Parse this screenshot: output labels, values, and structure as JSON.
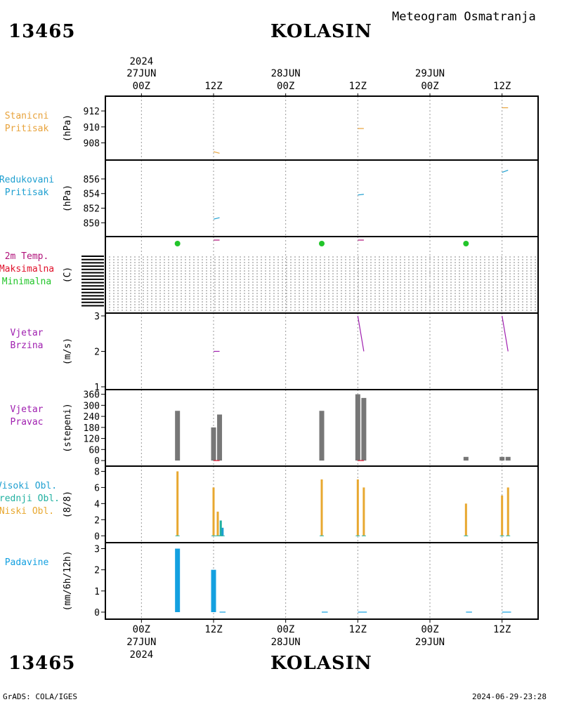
{
  "header": {
    "station_id": "13465",
    "station_name": "KOLASIN",
    "title": "Meteogram Osmatranja"
  },
  "footer": {
    "left": "GrADS: COLA/IGES",
    "right": "2024-06-29-23:28"
  },
  "colors": {
    "pressure": "#E8A33C",
    "reduced": "#1E9FD0",
    "temp": "#B0127A",
    "tmax": "#E0102A",
    "tmin": "#22C52A",
    "wind": "#A020B0",
    "dirbar": "#777777",
    "cloud": "#E8A830",
    "cloudmid": "#20B0A0",
    "precip": "#13A0E0",
    "grid": "#9a9a9a"
  },
  "chart_data": {
    "type": "meteogram",
    "x_axis": {
      "unit": "hours since 27JUN 00Z",
      "range": [
        -6,
        66
      ],
      "top_ticks": [
        {
          "x": 0,
          "line1": "2024",
          "line2": "27JUN",
          "line3": "00Z"
        },
        {
          "x": 12,
          "line1": "",
          "line2": "",
          "line3": "12Z"
        },
        {
          "x": 24,
          "line1": "",
          "line2": "28JUN",
          "line3": "00Z"
        },
        {
          "x": 36,
          "line1": "",
          "line2": "",
          "line3": "12Z"
        },
        {
          "x": 48,
          "line1": "",
          "line2": "29JUN",
          "line3": "00Z"
        },
        {
          "x": 60,
          "line1": "",
          "line2": "",
          "line3": "12Z"
        }
      ],
      "bottom_ticks": [
        {
          "x": 0,
          "line1": "00Z",
          "line2": "27JUN",
          "line3": "2024"
        },
        {
          "x": 12,
          "line1": "12Z",
          "line2": "",
          "line3": ""
        },
        {
          "x": 24,
          "line1": "00Z",
          "line2": "28JUN",
          "line3": ""
        },
        {
          "x": 36,
          "line1": "12Z",
          "line2": "",
          "line3": ""
        },
        {
          "x": 48,
          "line1": "00Z",
          "line2": "29JUN",
          "line3": ""
        },
        {
          "x": 60,
          "line1": "12Z",
          "line2": "",
          "line3": ""
        }
      ]
    },
    "panels": [
      {
        "id": "station_pressure",
        "labels": [
          "Stanicni",
          "Pritisak"
        ],
        "label_colors": [
          "#E8A33C",
          "#E8A33C"
        ],
        "ylabel": "(hPa)",
        "ylim": [
          906.2,
          913.5
        ],
        "yticks": [
          908,
          910,
          912
        ],
        "series": [
          {
            "type": "segments",
            "color": "#E8A33C",
            "points": [
              [
                12,
                906.9
              ],
              [
                13,
                906.7
              ],
              null,
              [
                36,
                909.8
              ],
              [
                37,
                909.8
              ],
              null,
              [
                60,
                912.4
              ],
              [
                61,
                912.4
              ]
            ]
          }
        ]
      },
      {
        "id": "reduced_pressure",
        "labels": [
          "Redukovani",
          "Pritisak"
        ],
        "label_colors": [
          "#1E9FD0",
          "#1E9FD0"
        ],
        "ylabel": "(hPa)",
        "ylim": [
          848.5,
          858.2
        ],
        "yticks": [
          850,
          852,
          854,
          856
        ],
        "series": [
          {
            "type": "segments",
            "color": "#1E9FD0",
            "points": [
              [
                12,
                850.5
              ],
              [
                13,
                850.7
              ],
              null,
              [
                36,
                853.8
              ],
              [
                37,
                853.9
              ],
              null,
              [
                60,
                856.9
              ],
              [
                61,
                857.2
              ]
            ]
          }
        ]
      },
      {
        "id": "temperature",
        "labels": [
          "2m Temp.",
          "Maksimalna",
          "Minimalna"
        ],
        "label_colors": [
          "#B0127A",
          "#E0102A",
          "#22C52A"
        ],
        "ylabel": "(C)",
        "ylim": [
          0,
          1
        ],
        "yticks": [],
        "series": [
          {
            "type": "points",
            "color": "#22C52A",
            "points": [
              [
                6,
                0.93
              ],
              [
                30,
                0.92
              ],
              [
                54,
                0.95
              ]
            ]
          },
          {
            "type": "segments",
            "color": "#B0127A",
            "points": [
              [
                12,
                0.99
              ],
              [
                13,
                0.99
              ],
              null,
              [
                36,
                0.99
              ],
              [
                37,
                0.99
              ]
            ]
          }
        ]
      },
      {
        "id": "wind_speed",
        "labels": [
          "Vjetar",
          "Brzina"
        ],
        "label_colors": [
          "#A020B0",
          "#A020B0"
        ],
        "ylabel": "(m/s)",
        "ylim": [
          1,
          3
        ],
        "yticks": [
          1,
          2,
          3
        ],
        "series": [
          {
            "type": "segments",
            "color": "#A020B0",
            "points": [
              [
                12,
                2.0
              ],
              [
                13,
                2.0
              ],
              null,
              [
                36,
                3.0
              ],
              [
                37,
                2.0
              ],
              null,
              [
                60,
                3.0
              ],
              [
                61,
                2.0
              ]
            ]
          }
        ]
      },
      {
        "id": "wind_direction",
        "labels": [
          "Vjetar",
          "Pravac"
        ],
        "label_colors": [
          "#A020B0",
          "#A020B0"
        ],
        "ylabel": "(stepeni)",
        "ylim": [
          -15,
          370
        ],
        "yticks": [
          0,
          60,
          120,
          180,
          240,
          300,
          360
        ],
        "bars": [
          {
            "x": 6,
            "value": 270,
            "color": "#777777"
          },
          {
            "x": 12,
            "value": 180,
            "color": "#777777"
          },
          {
            "x": 13,
            "value": 250,
            "color": "#777777"
          },
          {
            "x": 30,
            "value": 270,
            "color": "#777777"
          },
          {
            "x": 36,
            "value": 360,
            "color": "#777777"
          },
          {
            "x": 37,
            "value": 340,
            "color": "#777777"
          },
          {
            "x": 54,
            "value": 20,
            "color": "#777777"
          },
          {
            "x": 60,
            "value": 20,
            "color": "#777777"
          },
          {
            "x": 61,
            "value": 20,
            "color": "#777777"
          }
        ],
        "series": [
          {
            "type": "segments",
            "color": "#E0102A",
            "points": [
              [
                12,
                0
              ],
              [
                13,
                0
              ],
              null,
              [
                36,
                0
              ],
              [
                37,
                0
              ]
            ]
          }
        ]
      },
      {
        "id": "cloud_cover",
        "labels": [
          "Visoki Obl.",
          "Srednji Obl.",
          "Niski Obl."
        ],
        "label_colors": [
          "#1E9FD0",
          "#20B0A0",
          "#E8A830"
        ],
        "ylabel": "(8/8)",
        "ylim": [
          -0.5,
          8.3
        ],
        "yticks": [
          0,
          2,
          4,
          6,
          8
        ],
        "bars": [
          {
            "x": 6,
            "value": 8,
            "color": "#E8A830"
          },
          {
            "x": 12,
            "value": 6,
            "color": "#E8A830"
          },
          {
            "x": 12.7,
            "value": 3,
            "color": "#E8A830"
          },
          {
            "x": 13.2,
            "value": 1.9,
            "color": "#20B0A0"
          },
          {
            "x": 13.5,
            "value": 1,
            "color": "#1E9FD0"
          },
          {
            "x": 30,
            "value": 7,
            "color": "#E8A830"
          },
          {
            "x": 36,
            "value": 7,
            "color": "#E8A830"
          },
          {
            "x": 37,
            "value": 6,
            "color": "#E8A830"
          },
          {
            "x": 54,
            "value": 4,
            "color": "#E8A830"
          },
          {
            "x": 60,
            "value": 5,
            "color": "#E8A830"
          },
          {
            "x": 61,
            "value": 6,
            "color": "#E8A830"
          }
        ]
      },
      {
        "id": "precipitation",
        "labels": [
          "Padavine"
        ],
        "label_colors": [
          "#13A0E0"
        ],
        "ylabel": "(mm/6h/12h)",
        "ylim": [
          -0.2,
          3.15
        ],
        "yticks": [
          0,
          1,
          2,
          3
        ],
        "bars": [
          {
            "x": 6,
            "value": 3,
            "color": "#13A0E0"
          },
          {
            "x": 12,
            "value": 2,
            "color": "#13A0E0"
          }
        ],
        "series": [
          {
            "type": "segments",
            "color": "#13A0E0",
            "points": [
              [
                13,
                0
              ],
              [
                14,
                0
              ],
              null,
              [
                30,
                0
              ],
              [
                31,
                0
              ],
              null,
              [
                36,
                0
              ],
              [
                37.5,
                0
              ],
              null,
              [
                54,
                0
              ],
              [
                55,
                0
              ],
              null,
              [
                60,
                0
              ],
              [
                61.5,
                0
              ]
            ]
          }
        ]
      }
    ]
  }
}
